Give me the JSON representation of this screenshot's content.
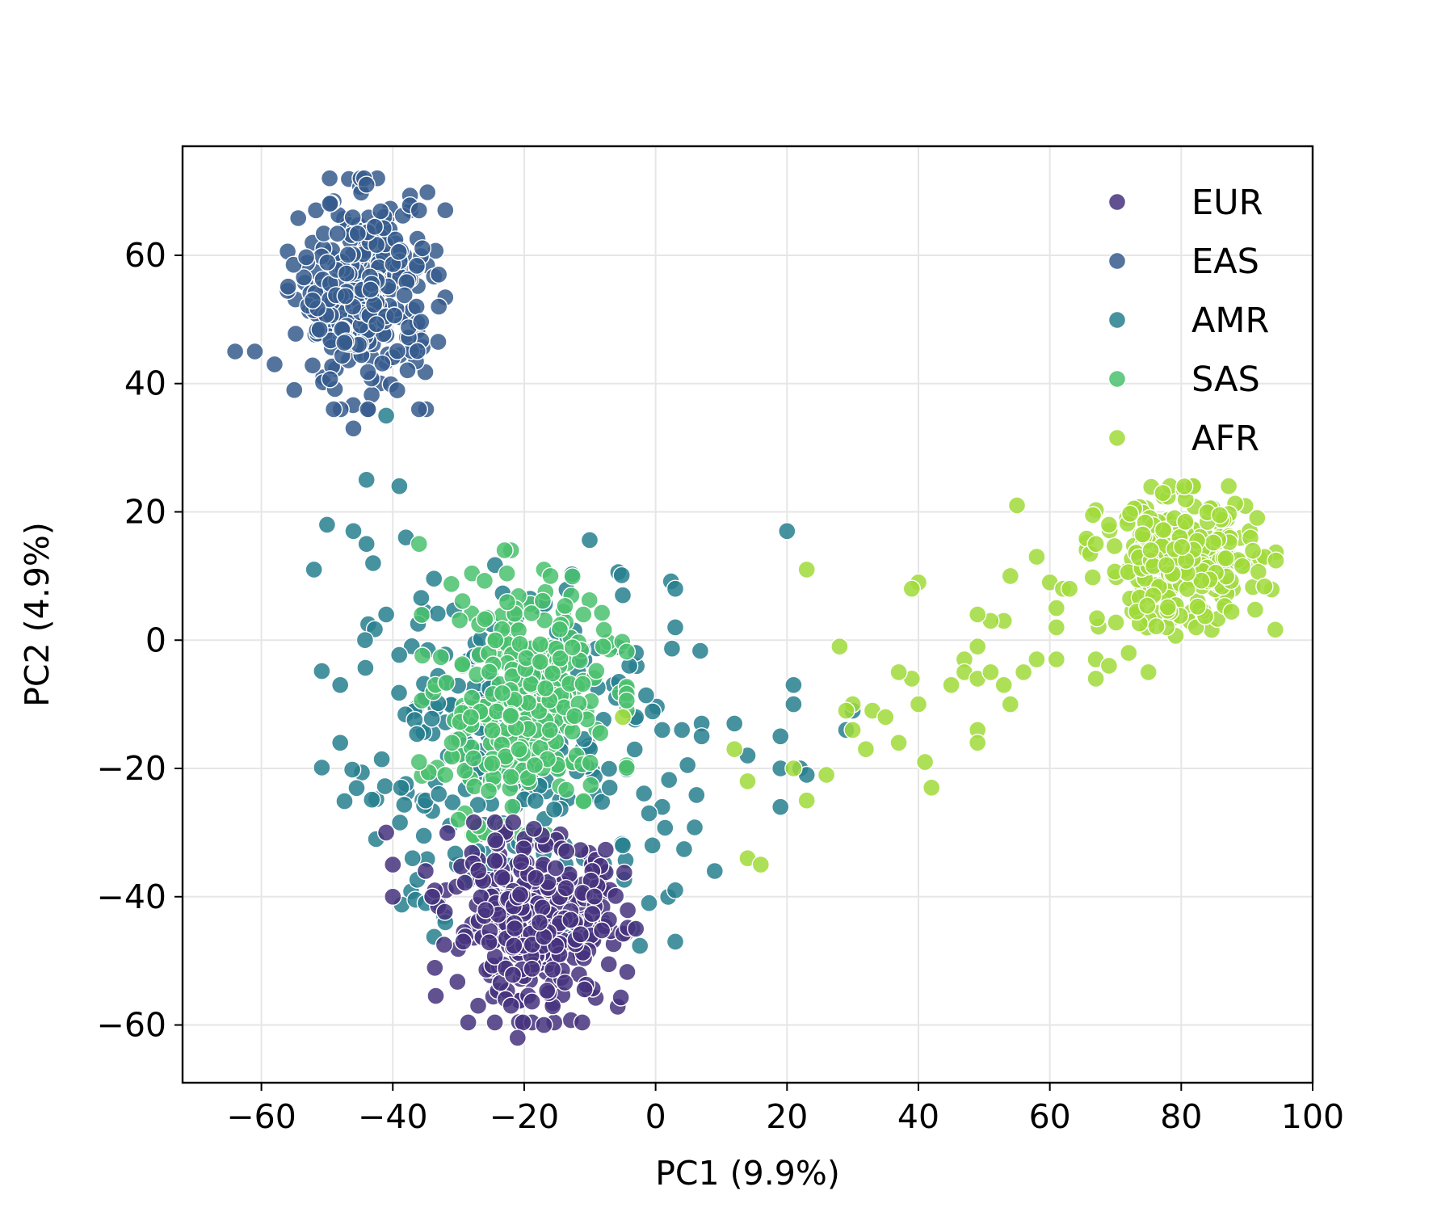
{
  "chart_data": {
    "type": "scatter",
    "title": "",
    "xlabel": "PC1 (9.9%)",
    "ylabel": "PC2 (4.9%)",
    "xlim": [
      -72,
      100
    ],
    "ylim": [
      -69,
      77
    ],
    "xticks": [
      -60,
      -40,
      -20,
      0,
      20,
      40,
      60,
      80,
      100
    ],
    "xtick_labels": [
      "−60",
      "−40",
      "−20",
      "0",
      "20",
      "40",
      "60",
      "80",
      "100"
    ],
    "yticks": [
      -60,
      -40,
      -20,
      0,
      20,
      40,
      60
    ],
    "ytick_labels": [
      "−60",
      "−40",
      "−20",
      "0",
      "20",
      "40",
      "60"
    ],
    "grid": true,
    "legend_position": "top-right",
    "series": [
      {
        "name": "EUR",
        "color": "#46327e",
        "n": 340,
        "center": [
          -18,
          -44
        ],
        "spread": [
          6.5,
          6.5
        ],
        "outliers": [
          [
            -41,
            -30
          ],
          [
            -21,
            -62
          ],
          [
            -40,
            -35
          ],
          [
            -40,
            -40
          ],
          [
            -34,
            -40
          ],
          [
            -3,
            -45
          ],
          [
            -17,
            -60
          ],
          [
            -27,
            -57
          ],
          [
            -22,
            -57
          ],
          [
            -35,
            -36
          ]
        ]
      },
      {
        "name": "EAS",
        "color": "#365c8d",
        "n": 310,
        "center": [
          -44,
          54
        ],
        "spread": [
          5.0,
          7.5
        ],
        "outliers": [
          [
            -64,
            45
          ],
          [
            -61,
            45
          ],
          [
            -58,
            43
          ],
          [
            -46,
            33
          ],
          [
            -36,
            36
          ],
          [
            -49,
            36
          ],
          [
            -55,
            39
          ],
          [
            -44,
            71
          ],
          [
            -36,
            67
          ],
          [
            -33,
            57
          ],
          [
            -33,
            52
          ]
        ]
      },
      {
        "name": "AMR",
        "color": "#277f8e",
        "n": 260,
        "center": [
          -22,
          -18
        ],
        "spread": [
          12,
          14
        ],
        "outliers": [
          [
            -44,
            25
          ],
          [
            -39,
            24
          ],
          [
            -41,
            35
          ],
          [
            20,
            17
          ],
          [
            3,
            8
          ],
          [
            3,
            2
          ],
          [
            -5,
            7
          ],
          [
            -3,
            -2
          ],
          [
            -4,
            -4
          ],
          [
            -6,
            -9
          ],
          [
            -3,
            -12
          ],
          [
            1,
            -14
          ],
          [
            4,
            -14
          ],
          [
            7,
            -13
          ],
          [
            7,
            -15
          ],
          [
            14,
            -18
          ],
          [
            12,
            -13
          ],
          [
            19,
            -15
          ],
          [
            19,
            -20
          ],
          [
            21,
            -10
          ],
          [
            21,
            -7
          ],
          [
            22,
            -20
          ],
          [
            23,
            -21
          ],
          [
            19,
            -26
          ],
          [
            30,
            -11
          ],
          [
            29,
            -14
          ],
          [
            9,
            -36
          ],
          [
            3,
            -39
          ],
          [
            3,
            -47
          ],
          [
            -1,
            -41
          ],
          [
            1,
            -26
          ],
          [
            -1,
            -27
          ],
          [
            -7,
            -23
          ],
          [
            -5,
            -32
          ],
          [
            -14,
            -45
          ],
          [
            -48,
            -16
          ],
          [
            -48,
            -7
          ],
          [
            -50,
            18
          ],
          [
            -46,
            17
          ],
          [
            -52,
            11
          ],
          [
            -44,
            15
          ],
          [
            -43,
            12
          ],
          [
            -38,
            16
          ],
          [
            -41,
            4
          ],
          [
            -35,
            -25
          ],
          [
            -27,
            -20
          ],
          [
            -33,
            -24
          ],
          [
            -37,
            -34
          ],
          [
            -35,
            -41
          ],
          [
            -32,
            -44
          ]
        ]
      },
      {
        "name": "SAS",
        "color": "#4ac16d",
        "n": 300,
        "center": [
          -20,
          -10
        ],
        "spread": [
          6.5,
          8.5
        ],
        "outliers": [
          [
            -22,
            14
          ],
          [
            -23,
            14
          ],
          [
            -17,
            11
          ],
          [
            -16,
            10
          ],
          [
            -11,
            4
          ],
          [
            -8,
            -1
          ],
          [
            -36,
            15
          ],
          [
            -32,
            -21
          ],
          [
            -36,
            -19
          ],
          [
            -26,
            -30
          ],
          [
            -15,
            -32
          ],
          [
            -20,
            -32
          ],
          [
            -23,
            -29
          ],
          [
            -27,
            -29
          ],
          [
            -30,
            -28
          ],
          [
            -31,
            -16
          ]
        ]
      },
      {
        "name": "AFR",
        "color": "#a0da39",
        "n": 300,
        "center": [
          80,
          12
        ],
        "spread": [
          6.0,
          5.0
        ],
        "outliers": [
          [
            55,
            21
          ],
          [
            58,
            13
          ],
          [
            54,
            10
          ],
          [
            60,
            9
          ],
          [
            62,
            8
          ],
          [
            63,
            8
          ],
          [
            61,
            5
          ],
          [
            61,
            2
          ],
          [
            61,
            -3
          ],
          [
            58,
            -3
          ],
          [
            56,
            -5
          ],
          [
            53,
            3
          ],
          [
            51,
            3
          ],
          [
            49,
            4
          ],
          [
            49,
            -1
          ],
          [
            47,
            -3
          ],
          [
            47,
            -5
          ],
          [
            45,
            -7
          ],
          [
            49,
            -6
          ],
          [
            51,
            -5
          ],
          [
            53,
            -7
          ],
          [
            54,
            -10
          ],
          [
            49,
            -14
          ],
          [
            49,
            -16
          ],
          [
            40,
            9
          ],
          [
            39,
            8
          ],
          [
            28,
            -1
          ],
          [
            23,
            11
          ],
          [
            39,
            -6
          ],
          [
            37,
            -5
          ],
          [
            40,
            -10
          ],
          [
            37,
            -16
          ],
          [
            32,
            -17
          ],
          [
            30,
            -14
          ],
          [
            33,
            -11
          ],
          [
            30,
            -10
          ],
          [
            29,
            -11
          ],
          [
            41,
            -19
          ],
          [
            42,
            -23
          ],
          [
            35,
            -12
          ],
          [
            26,
            -21
          ],
          [
            21,
            -20
          ],
          [
            23,
            -25
          ],
          [
            14,
            -22
          ],
          [
            12,
            -17
          ],
          [
            14,
            -34
          ],
          [
            16,
            -35
          ],
          [
            -5,
            -12
          ],
          [
            67,
            -3
          ],
          [
            69,
            -4
          ],
          [
            72,
            -2
          ],
          [
            75,
            -5
          ],
          [
            67,
            -6
          ],
          [
            69,
            18
          ],
          [
            67,
            15
          ]
        ]
      }
    ]
  }
}
